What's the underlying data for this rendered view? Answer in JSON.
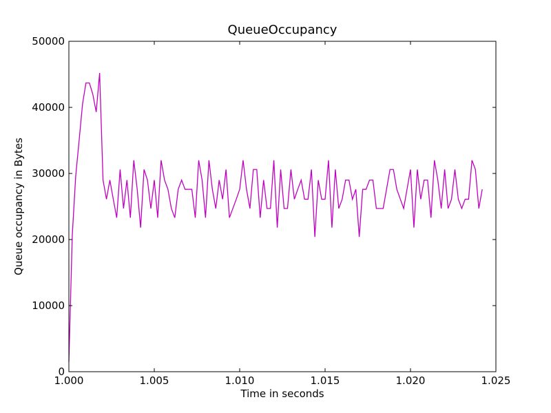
{
  "chart_data": {
    "type": "line",
    "title": "QueueOccupancy",
    "xlabel": "Time in seconds",
    "ylabel": "Queue occupancy in Bytes",
    "xlim": [
      1.0,
      1.025
    ],
    "ylim": [
      0,
      50000
    ],
    "xticks": [
      {
        "value": 1.0,
        "label": "1.000"
      },
      {
        "value": 1.005,
        "label": "1.005"
      },
      {
        "value": 1.01,
        "label": "1.010"
      },
      {
        "value": 1.015,
        "label": "1.015"
      },
      {
        "value": 1.02,
        "label": "1.020"
      },
      {
        "value": 1.025,
        "label": "1.025"
      }
    ],
    "yticks": [
      {
        "value": 0,
        "label": "0"
      },
      {
        "value": 10000,
        "label": "10000"
      },
      {
        "value": 20000,
        "label": "20000"
      },
      {
        "value": 30000,
        "label": "30000"
      },
      {
        "value": 40000,
        "label": "40000"
      },
      {
        "value": 50000,
        "label": "50000"
      }
    ],
    "grid": false,
    "series": [
      {
        "color": "#bf00bf",
        "points": [
          [
            1.0,
            1500
          ],
          [
            1.0002,
            20700
          ],
          [
            1.0004,
            29600
          ],
          [
            1.0006,
            35000
          ],
          [
            1.0008,
            40500
          ],
          [
            1.001,
            43700
          ],
          [
            1.0012,
            43700
          ],
          [
            1.0014,
            42000
          ],
          [
            1.0016,
            39300
          ],
          [
            1.0018,
            45200
          ],
          [
            1.002,
            29000
          ],
          [
            1.0022,
            26100
          ],
          [
            1.0024,
            29000
          ],
          [
            1.0026,
            26100
          ],
          [
            1.0028,
            23300
          ],
          [
            1.003,
            30600
          ],
          [
            1.0032,
            24700
          ],
          [
            1.0034,
            29000
          ],
          [
            1.0036,
            23300
          ],
          [
            1.0038,
            32000
          ],
          [
            1.004,
            27600
          ],
          [
            1.0042,
            21800
          ],
          [
            1.0044,
            30600
          ],
          [
            1.0046,
            29000
          ],
          [
            1.0048,
            24700
          ],
          [
            1.005,
            29000
          ],
          [
            1.0052,
            23300
          ],
          [
            1.0054,
            32000
          ],
          [
            1.0056,
            29000
          ],
          [
            1.0058,
            27600
          ],
          [
            1.006,
            24700
          ],
          [
            1.0062,
            23300
          ],
          [
            1.0064,
            27600
          ],
          [
            1.0066,
            29000
          ],
          [
            1.0068,
            27600
          ],
          [
            1.007,
            27600
          ],
          [
            1.0072,
            27600
          ],
          [
            1.0074,
            23300
          ],
          [
            1.0076,
            32000
          ],
          [
            1.0078,
            29000
          ],
          [
            1.008,
            23300
          ],
          [
            1.0082,
            32000
          ],
          [
            1.0084,
            27600
          ],
          [
            1.0086,
            24700
          ],
          [
            1.0088,
            29000
          ],
          [
            1.009,
            26100
          ],
          [
            1.0092,
            30600
          ],
          [
            1.0094,
            23300
          ],
          [
            1.0098,
            26100
          ],
          [
            1.01,
            27600
          ],
          [
            1.0102,
            32000
          ],
          [
            1.0104,
            27600
          ],
          [
            1.0106,
            24700
          ],
          [
            1.0108,
            30600
          ],
          [
            1.011,
            30600
          ],
          [
            1.0112,
            23300
          ],
          [
            1.0114,
            29000
          ],
          [
            1.0116,
            24700
          ],
          [
            1.0118,
            24700
          ],
          [
            1.012,
            32000
          ],
          [
            1.0122,
            21800
          ],
          [
            1.0124,
            30600
          ],
          [
            1.0126,
            24700
          ],
          [
            1.0128,
            24700
          ],
          [
            1.013,
            30600
          ],
          [
            1.0132,
            26100
          ],
          [
            1.0134,
            27600
          ],
          [
            1.0136,
            29000
          ],
          [
            1.0138,
            26100
          ],
          [
            1.014,
            26100
          ],
          [
            1.0142,
            30600
          ],
          [
            1.0144,
            20400
          ],
          [
            1.0146,
            29000
          ],
          [
            1.0148,
            26100
          ],
          [
            1.015,
            26100
          ],
          [
            1.0152,
            32000
          ],
          [
            1.0154,
            21800
          ],
          [
            1.0156,
            30600
          ],
          [
            1.0158,
            24700
          ],
          [
            1.016,
            26100
          ],
          [
            1.0162,
            29000
          ],
          [
            1.0164,
            29000
          ],
          [
            1.0166,
            26100
          ],
          [
            1.0168,
            27600
          ],
          [
            1.017,
            20400
          ],
          [
            1.0172,
            27600
          ],
          [
            1.0174,
            27600
          ],
          [
            1.0176,
            29000
          ],
          [
            1.0178,
            29000
          ],
          [
            1.018,
            24700
          ],
          [
            1.0184,
            24700
          ],
          [
            1.0188,
            30600
          ],
          [
            1.019,
            30600
          ],
          [
            1.0192,
            27600
          ],
          [
            1.0196,
            24700
          ],
          [
            1.02,
            30600
          ],
          [
            1.0202,
            21800
          ],
          [
            1.0204,
            30600
          ],
          [
            1.0206,
            26100
          ],
          [
            1.0208,
            29000
          ],
          [
            1.021,
            29000
          ],
          [
            1.0212,
            23300
          ],
          [
            1.0214,
            32000
          ],
          [
            1.0216,
            29000
          ],
          [
            1.0218,
            24700
          ],
          [
            1.022,
            30600
          ],
          [
            1.0222,
            24700
          ],
          [
            1.0224,
            26100
          ],
          [
            1.0226,
            30600
          ],
          [
            1.0228,
            26100
          ],
          [
            1.023,
            24700
          ],
          [
            1.0232,
            26100
          ],
          [
            1.0234,
            26100
          ],
          [
            1.0236,
            32000
          ],
          [
            1.0238,
            30600
          ],
          [
            1.024,
            24700
          ],
          [
            1.0242,
            27600
          ]
        ]
      }
    ]
  }
}
